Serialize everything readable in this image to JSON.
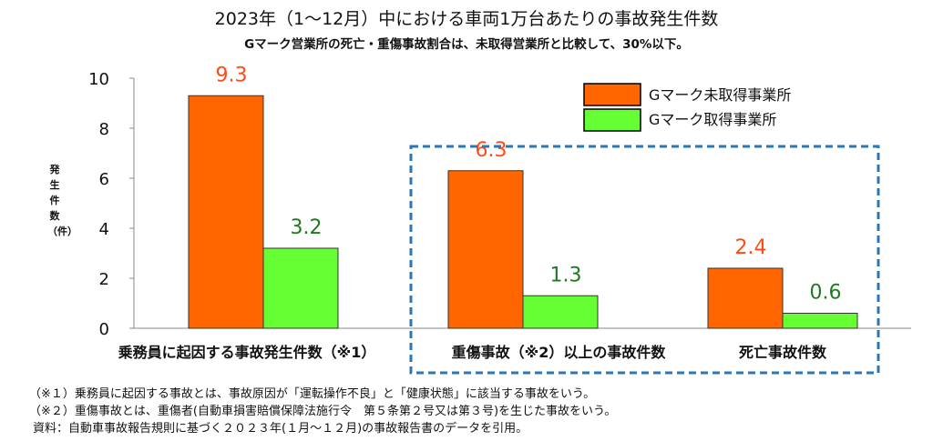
{
  "chart_data": {
    "type": "bar",
    "title": "2023年（1〜12月）中における車両1万台あたりの事故発生件数",
    "subtitle": "Gマーク営業所の死亡・重傷事故割合は、未取得営業所と比較して、30%以下。",
    "ylabel": "発生件数（件）",
    "ylim": [
      0,
      10
    ],
    "yticks": [
      "0",
      "2",
      "4",
      "6",
      "8",
      "10"
    ],
    "grid": false,
    "legend_position": "top-right",
    "categories": [
      "乗務員に起因する事故発生件数（※1）",
      "重傷事故（※2）以上の事故件数",
      "死亡事故件数"
    ],
    "series": [
      {
        "name": "Gマーク未取得事業所",
        "values": [
          9.3,
          6.3,
          2.4
        ],
        "labels": [
          "9.3",
          "6.3",
          "2.4"
        ],
        "color": "#ff6600",
        "label_color": "#ff4b19"
      },
      {
        "name": "Gマーク取得事業所",
        "values": [
          3.2,
          1.3,
          0.6
        ],
        "labels": [
          "3.2",
          "1.3",
          "0.6"
        ],
        "color": "#66ff33",
        "label_color": "#1e7a1e"
      }
    ],
    "highlight_box_color": "#2e75b6"
  },
  "notes": {
    "note1": "（※１）乗務員に起因する事故とは、事故原因が「運転操作不良」と「健康状態」に該当する事故をいう。",
    "note2": "（※２）重傷事故とは、重傷者(自動車損害賠償保障法施行令　第５条第２号又は第３号)を生じた事故をいう。",
    "source": "資料：自動車事故報告規則に基づく２０２３年(１月〜１２月)の事故報告書のデータを引用。"
  }
}
